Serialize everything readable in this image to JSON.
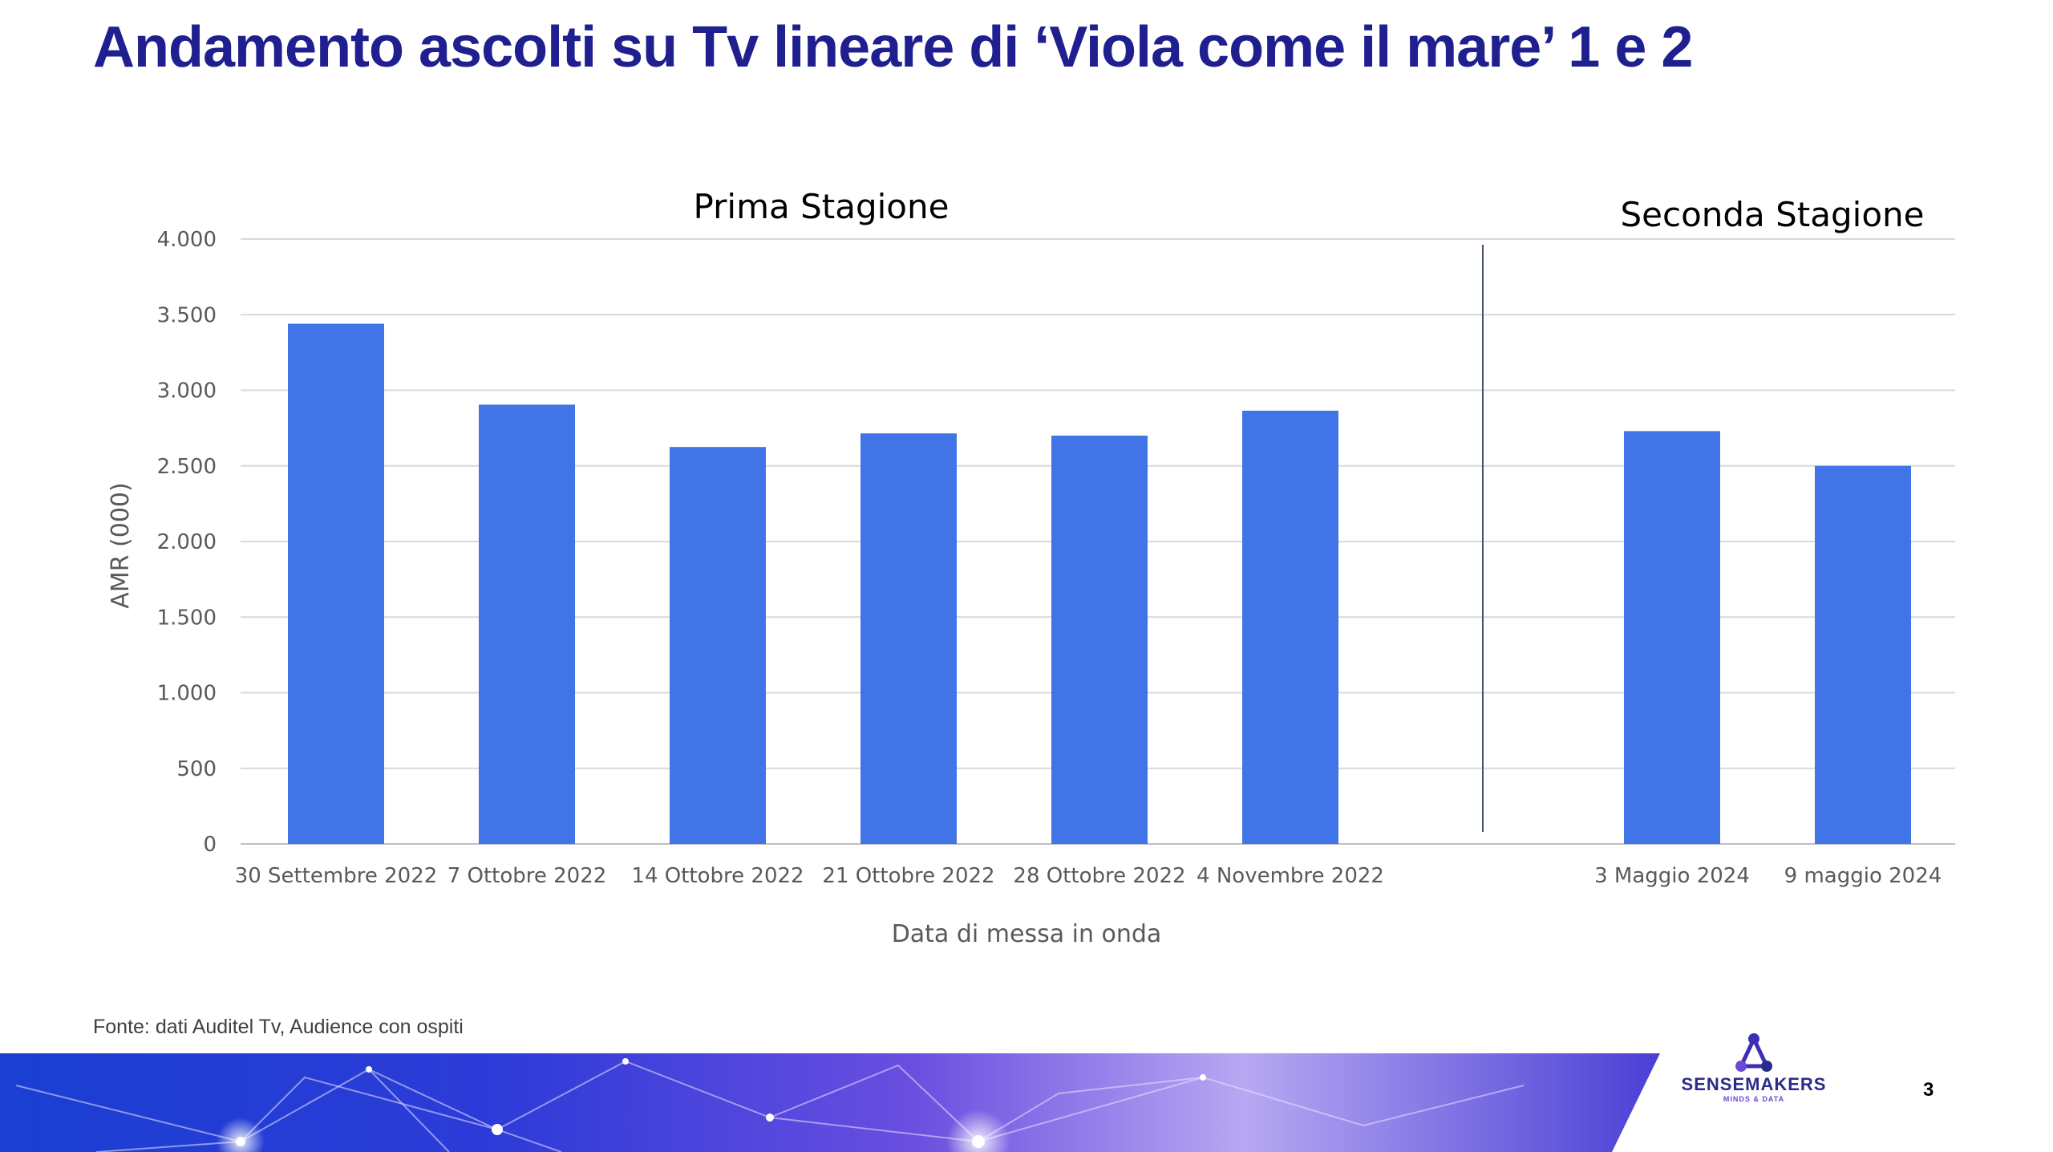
{
  "page": {
    "title": "Andamento ascolti su Tv lineare di ‘Viola come il mare’ 1 e 2",
    "source_note": "Fonte: dati Auditel Tv, Audience con ospiti",
    "page_number": "3"
  },
  "logo": {
    "name": "SENSEMAKERS",
    "tagline": "MINDS & DATA",
    "icon": "sensemakers-logo-icon"
  },
  "chart_data": {
    "type": "bar",
    "ylabel": "AMR (000)",
    "xlabel": "Data di messa in onda",
    "ylim": [
      0,
      4000
    ],
    "yticks": [
      0,
      500,
      1000,
      1500,
      2000,
      2500,
      3000,
      3500,
      4000
    ],
    "ytick_labels": [
      "0",
      "500",
      "1.000",
      "1.500",
      "2.000",
      "2.500",
      "3.000",
      "3.500",
      "4.000"
    ],
    "grid": true,
    "bar_color": "#4174e6",
    "groups": [
      {
        "title": "Prima Stagione",
        "categories": [
          "30 Settembre 2022",
          "7 Ottobre 2022",
          "14 Ottobre 2022",
          "21 Ottobre 2022",
          "28 Ottobre 2022",
          "4 Novembre 2022"
        ],
        "values": [
          3440,
          2905,
          2625,
          2715,
          2700,
          2865
        ]
      },
      {
        "title": "Seconda Stagione",
        "categories": [
          "3 Maggio 2024",
          "9 maggio 2024"
        ],
        "values": [
          2730,
          2500
        ]
      }
    ]
  }
}
